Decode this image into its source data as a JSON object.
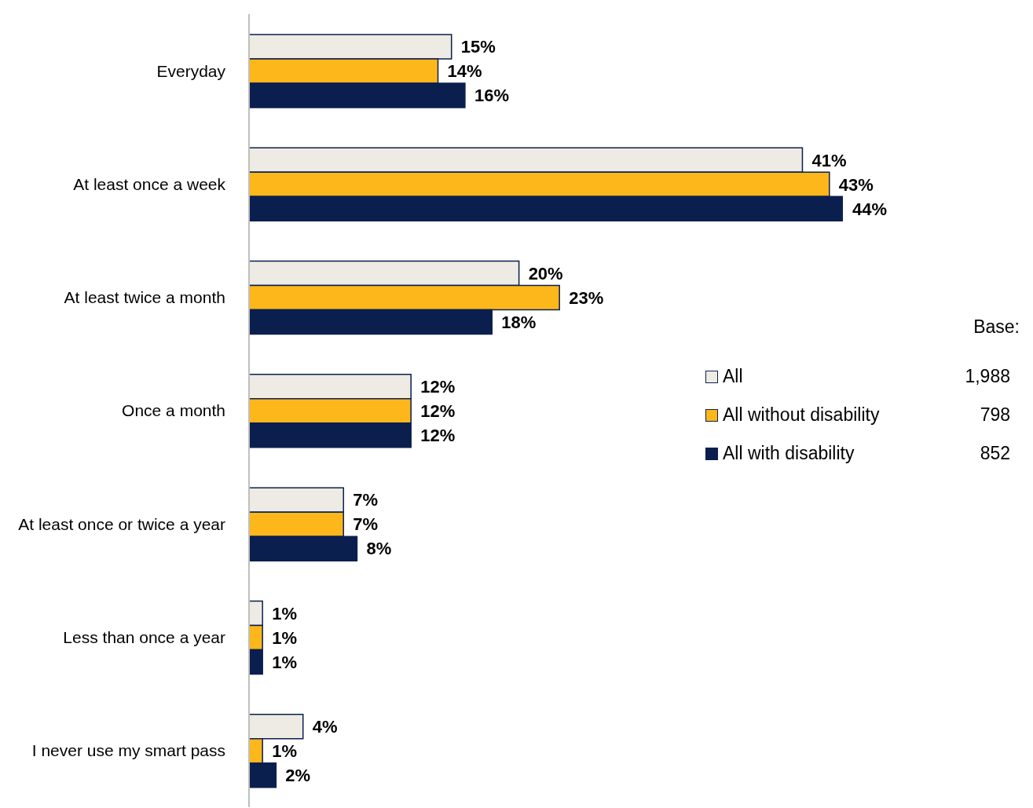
{
  "chart_data": {
    "type": "bar",
    "orientation": "horizontal",
    "categories": [
      "Everyday",
      "At least once a week",
      "At least twice a month",
      "Once a month",
      "At least once or twice a year",
      "Less than once a year",
      "I never use my smart pass"
    ],
    "series": [
      {
        "name": "All",
        "color": "#edebe3",
        "values": [
          15,
          41,
          20,
          12,
          7,
          1,
          4
        ],
        "value_labels": [
          "15%",
          "41%",
          "20%",
          "12%",
          "7%",
          "1%",
          "4%"
        ]
      },
      {
        "name": "All without disability",
        "color": "#fdb71a",
        "values": [
          14,
          43,
          23,
          12,
          7,
          1,
          1
        ],
        "value_labels": [
          "14%",
          "43%",
          "23%",
          "12%",
          "7%",
          "1%",
          "1%"
        ]
      },
      {
        "name": "All with disability",
        "color": "#0b1f4f",
        "values": [
          16,
          44,
          18,
          12,
          8,
          1,
          2
        ],
        "value_labels": [
          "16%",
          "44%",
          "18%",
          "12%",
          "8%",
          "1%",
          "2%"
        ]
      }
    ],
    "legend": "right",
    "legend_title": "Base:",
    "annotations": [
      "1,988",
      "798",
      "852"
    ]
  }
}
